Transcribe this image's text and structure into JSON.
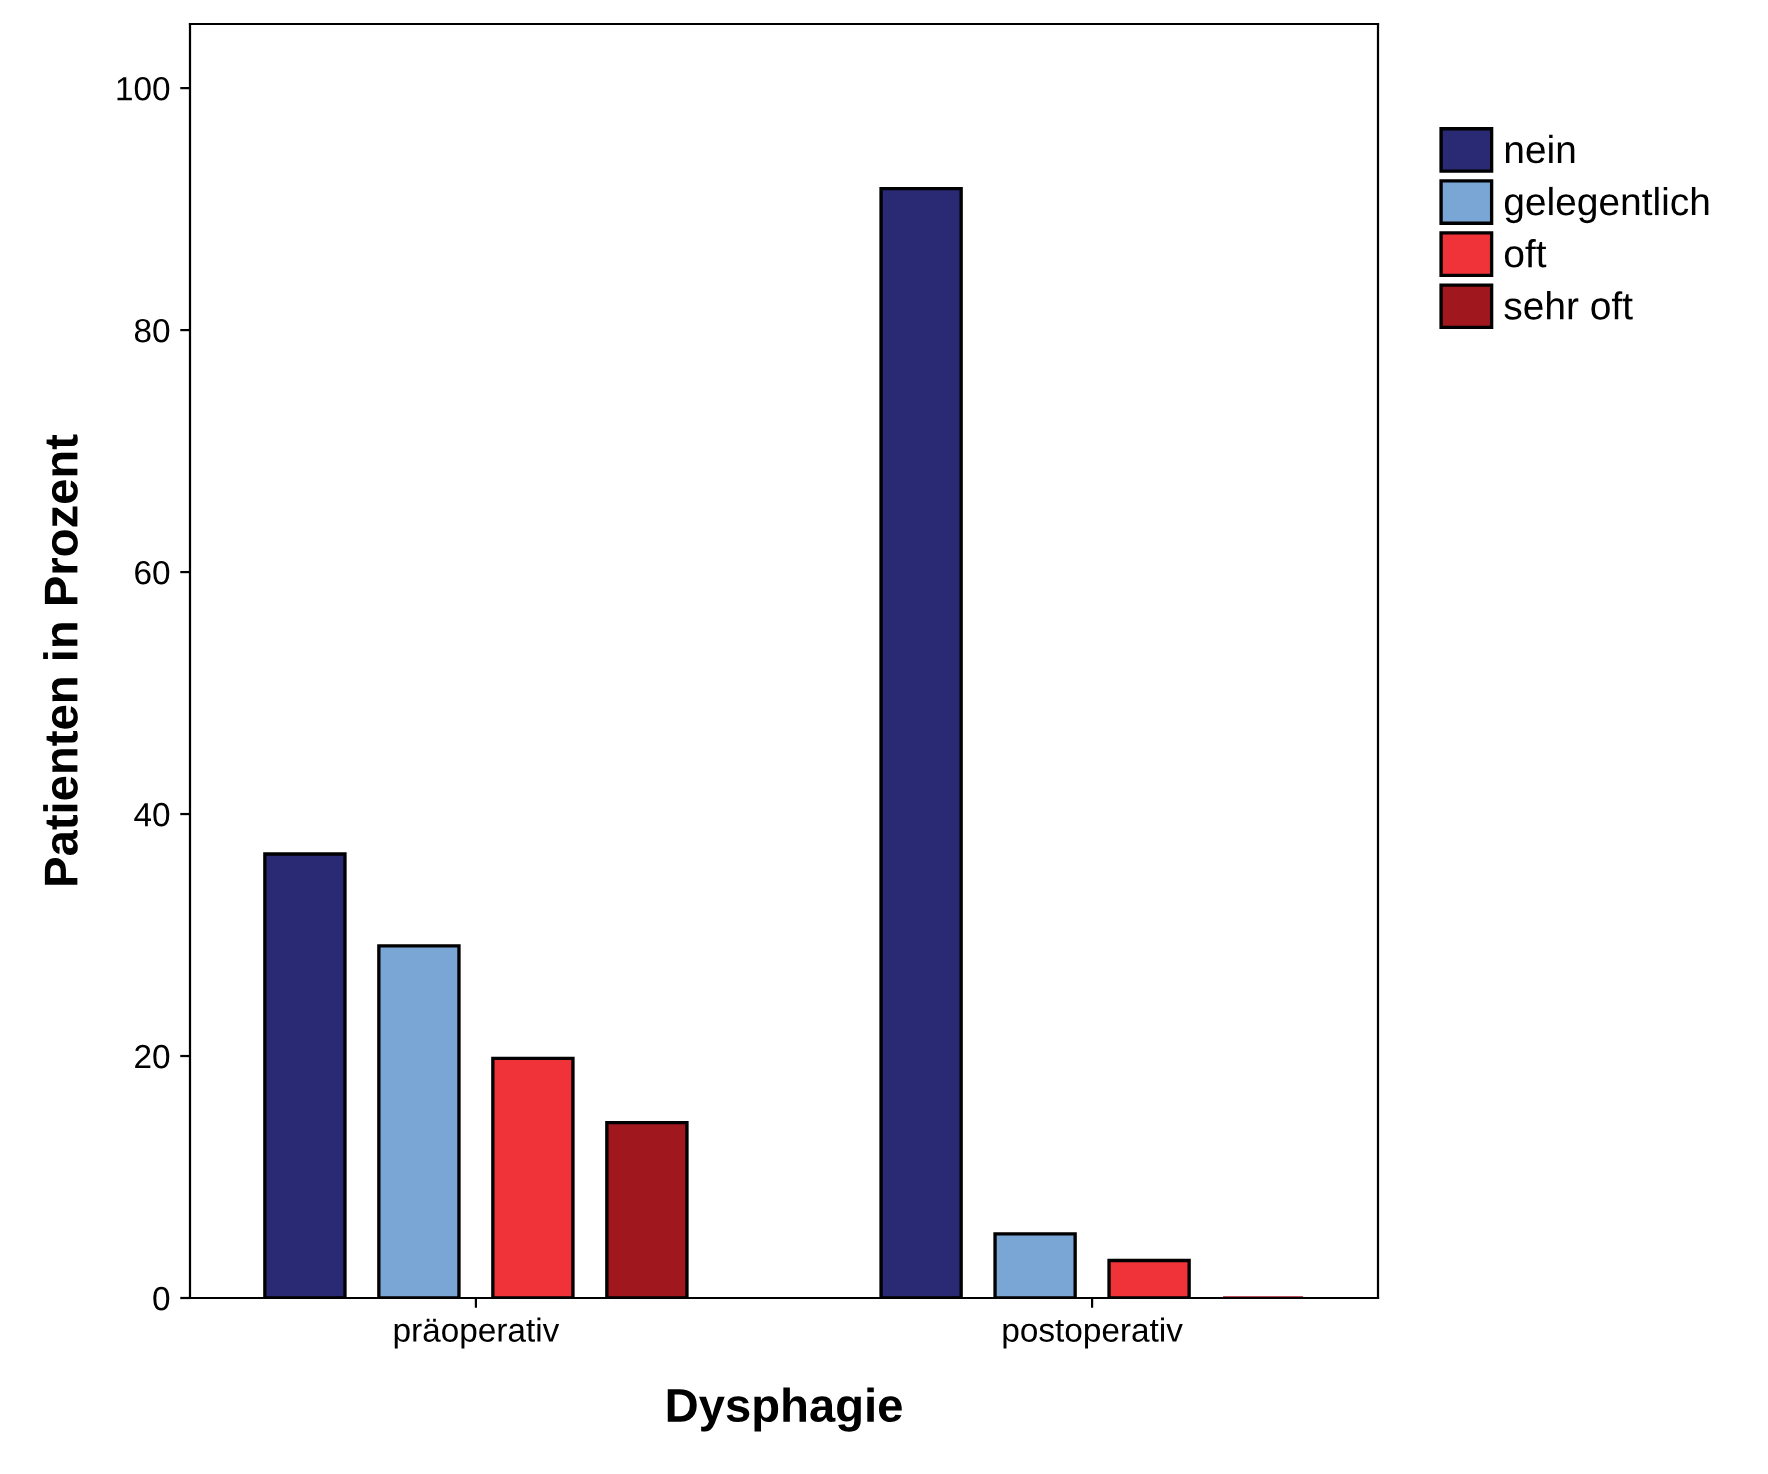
{
  "chart_data": {
    "type": "bar",
    "xlabel": "Dysphagie",
    "ylabel": "Patienten in Prozent",
    "categories": [
      "präoperativ",
      "postoperativ"
    ],
    "series": [
      {
        "name": "nein",
        "color": "#292a73",
        "values": [
          36.7,
          91.7
        ]
      },
      {
        "name": "gelegentlich",
        "color": "#7aa6d6",
        "values": [
          29.1,
          5.3
        ]
      },
      {
        "name": "oft",
        "color": "#ef3338",
        "values": [
          19.8,
          3.1
        ]
      },
      {
        "name": "sehr oft",
        "color": "#a0171e",
        "values": [
          14.5,
          0
        ]
      }
    ],
    "ylim": [
      0,
      105.3
    ],
    "yticks": [
      0,
      20,
      40,
      60,
      80,
      100
    ],
    "grid": false,
    "legend": "right"
  }
}
